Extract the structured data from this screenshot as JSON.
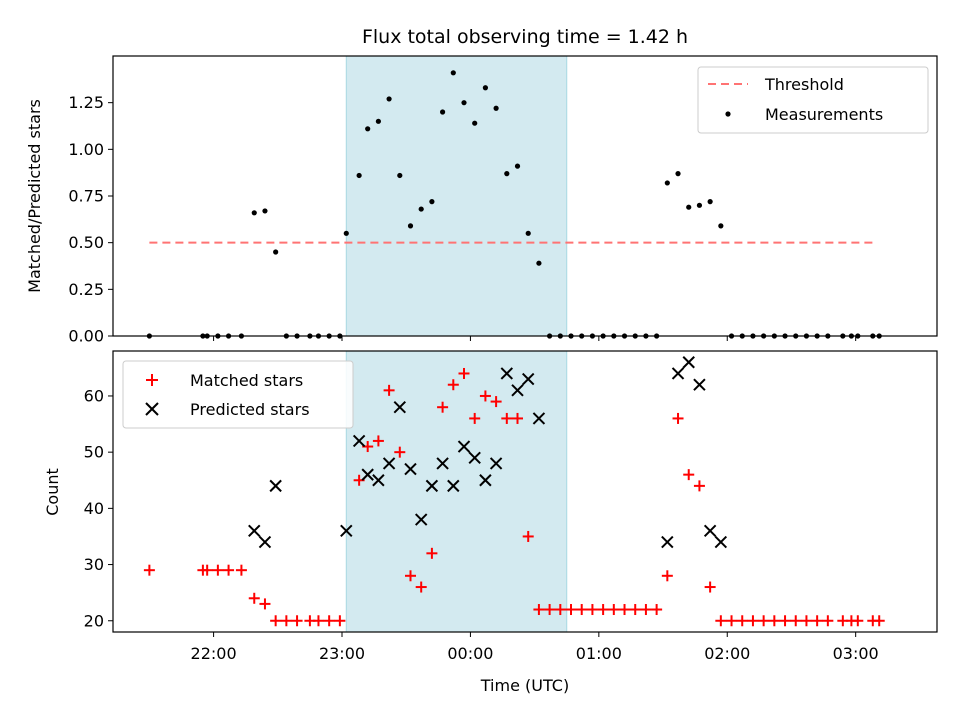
{
  "chart_data": [
    {
      "type": "scatter",
      "title": "Flux total observing time = 1.42 h",
      "ylabel": "Matched/Predicted stars",
      "ylim": [
        0,
        1.5
      ],
      "yticks": [
        0.0,
        0.25,
        0.5,
        0.75,
        1.0,
        1.25
      ],
      "ytick_labels": [
        "0.00",
        "0.25",
        "0.50",
        "0.75",
        "1.00",
        "1.25"
      ],
      "legend_position": "top-right",
      "highlight": {
        "start": "23:02",
        "end": "00:45",
        "color": "#d3eaf0"
      },
      "threshold": {
        "name": "Threshold",
        "value": 0.5,
        "start": "21:30",
        "end": "03:10",
        "color": "#ff7373"
      },
      "series": [
        {
          "name": "Measurements",
          "color": "#000000",
          "points": [
            [
              "21:30",
              0.0
            ],
            [
              "21:55",
              0.0
            ],
            [
              "21:57",
              0.0
            ],
            [
              "22:02",
              0.0
            ],
            [
              "22:07",
              0.0
            ],
            [
              "22:13",
              0.0
            ],
            [
              "22:19",
              0.66
            ],
            [
              "22:24",
              0.67
            ],
            [
              "22:29",
              0.45
            ],
            [
              "22:34",
              0.0
            ],
            [
              "22:39",
              0.0
            ],
            [
              "22:45",
              0.0
            ],
            [
              "22:49",
              0.0
            ],
            [
              "22:54",
              0.0
            ],
            [
              "22:59",
              0.0
            ],
            [
              "23:02",
              0.55
            ],
            [
              "23:08",
              0.86
            ],
            [
              "23:12",
              1.11
            ],
            [
              "23:17",
              1.15
            ],
            [
              "23:22",
              1.27
            ],
            [
              "23:27",
              0.86
            ],
            [
              "23:32",
              0.59
            ],
            [
              "23:37",
              0.68
            ],
            [
              "23:42",
              0.72
            ],
            [
              "23:47",
              1.2
            ],
            [
              "23:52",
              1.41
            ],
            [
              "23:57",
              1.25
            ],
            [
              "00:02",
              1.14
            ],
            [
              "00:07",
              1.33
            ],
            [
              "00:12",
              1.22
            ],
            [
              "00:17",
              0.87
            ],
            [
              "00:22",
              0.91
            ],
            [
              "00:27",
              0.55
            ],
            [
              "00:32",
              0.39
            ],
            [
              "00:37",
              0.0
            ],
            [
              "00:42",
              0.0
            ],
            [
              "00:47",
              0.0
            ],
            [
              "00:52",
              0.0
            ],
            [
              "00:57",
              0.0
            ],
            [
              "01:02",
              0.0
            ],
            [
              "01:07",
              0.0
            ],
            [
              "01:12",
              0.0
            ],
            [
              "01:17",
              0.0
            ],
            [
              "01:22",
              0.0
            ],
            [
              "01:27",
              0.0
            ],
            [
              "01:32",
              0.82
            ],
            [
              "01:37",
              0.87
            ],
            [
              "01:42",
              0.69
            ],
            [
              "01:47",
              0.7
            ],
            [
              "01:52",
              0.72
            ],
            [
              "01:57",
              0.59
            ],
            [
              "02:02",
              0.0
            ],
            [
              "02:07",
              0.0
            ],
            [
              "02:12",
              0.0
            ],
            [
              "02:17",
              0.0
            ],
            [
              "02:22",
              0.0
            ],
            [
              "02:27",
              0.0
            ],
            [
              "02:32",
              0.0
            ],
            [
              "02:37",
              0.0
            ],
            [
              "02:42",
              0.0
            ],
            [
              "02:47",
              0.0
            ],
            [
              "02:54",
              0.0
            ],
            [
              "02:58",
              0.0
            ],
            [
              "03:01",
              0.0
            ],
            [
              "03:08",
              0.0
            ],
            [
              "03:11",
              0.0
            ]
          ]
        }
      ]
    },
    {
      "type": "scatter",
      "xlabel": "Time (UTC)",
      "ylabel": "Count",
      "ylim": [
        18,
        68
      ],
      "yticks": [
        20,
        30,
        40,
        50,
        60
      ],
      "xticks": [
        "22:00",
        "23:00",
        "00:00",
        "01:00",
        "02:00",
        "03:00"
      ],
      "xlim": [
        "21:13",
        "03:38"
      ],
      "legend_position": "top-left",
      "series": [
        {
          "name": "Matched stars",
          "marker": "+",
          "color": "#ff0000",
          "points": [
            [
              "21:30",
              29
            ],
            [
              "21:55",
              29
            ],
            [
              "21:57",
              29
            ],
            [
              "22:02",
              29
            ],
            [
              "22:07",
              29
            ],
            [
              "22:13",
              29
            ],
            [
              "22:19",
              24
            ],
            [
              "22:24",
              23
            ],
            [
              "22:29",
              20
            ],
            [
              "22:34",
              20
            ],
            [
              "22:39",
              20
            ],
            [
              "22:45",
              20
            ],
            [
              "22:49",
              20
            ],
            [
              "22:54",
              20
            ],
            [
              "22:59",
              20
            ],
            [
              "23:08",
              45
            ],
            [
              "23:12",
              51
            ],
            [
              "23:17",
              52
            ],
            [
              "23:22",
              61
            ],
            [
              "23:27",
              50
            ],
            [
              "23:32",
              28
            ],
            [
              "23:37",
              26
            ],
            [
              "23:42",
              32
            ],
            [
              "23:47",
              58
            ],
            [
              "23:52",
              62
            ],
            [
              "23:57",
              64
            ],
            [
              "00:02",
              56
            ],
            [
              "00:07",
              60
            ],
            [
              "00:12",
              59
            ],
            [
              "00:17",
              56
            ],
            [
              "00:22",
              56
            ],
            [
              "00:27",
              35
            ],
            [
              "00:32",
              22
            ],
            [
              "00:37",
              22
            ],
            [
              "00:42",
              22
            ],
            [
              "00:47",
              22
            ],
            [
              "00:52",
              22
            ],
            [
              "00:57",
              22
            ],
            [
              "01:02",
              22
            ],
            [
              "01:07",
              22
            ],
            [
              "01:12",
              22
            ],
            [
              "01:17",
              22
            ],
            [
              "01:22",
              22
            ],
            [
              "01:27",
              22
            ],
            [
              "01:32",
              28
            ],
            [
              "01:37",
              56
            ],
            [
              "01:42",
              46
            ],
            [
              "01:47",
              44
            ],
            [
              "01:52",
              26
            ],
            [
              "01:57",
              20
            ],
            [
              "02:02",
              20
            ],
            [
              "02:07",
              20
            ],
            [
              "02:12",
              20
            ],
            [
              "02:17",
              20
            ],
            [
              "02:22",
              20
            ],
            [
              "02:27",
              20
            ],
            [
              "02:32",
              20
            ],
            [
              "02:37",
              20
            ],
            [
              "02:42",
              20
            ],
            [
              "02:47",
              20
            ],
            [
              "02:54",
              20
            ],
            [
              "02:58",
              20
            ],
            [
              "03:01",
              20
            ],
            [
              "03:08",
              20
            ],
            [
              "03:11",
              20
            ]
          ]
        },
        {
          "name": "Predicted stars",
          "marker": "x",
          "color": "#000000",
          "points": [
            [
              "22:19",
              36
            ],
            [
              "22:24",
              34
            ],
            [
              "22:29",
              44
            ],
            [
              "23:02",
              36
            ],
            [
              "23:08",
              52
            ],
            [
              "23:12",
              46
            ],
            [
              "23:17",
              45
            ],
            [
              "23:22",
              48
            ],
            [
              "23:27",
              58
            ],
            [
              "23:32",
              47
            ],
            [
              "23:37",
              38
            ],
            [
              "23:42",
              44
            ],
            [
              "23:47",
              48
            ],
            [
              "23:52",
              44
            ],
            [
              "23:57",
              51
            ],
            [
              "00:02",
              49
            ],
            [
              "00:07",
              45
            ],
            [
              "00:12",
              48
            ],
            [
              "00:17",
              64
            ],
            [
              "00:22",
              61
            ],
            [
              "00:27",
              63
            ],
            [
              "00:32",
              56
            ],
            [
              "01:32",
              34
            ],
            [
              "01:37",
              64
            ],
            [
              "01:42",
              66
            ],
            [
              "01:47",
              62
            ],
            [
              "01:52",
              36
            ],
            [
              "01:57",
              34
            ]
          ]
        }
      ]
    }
  ]
}
